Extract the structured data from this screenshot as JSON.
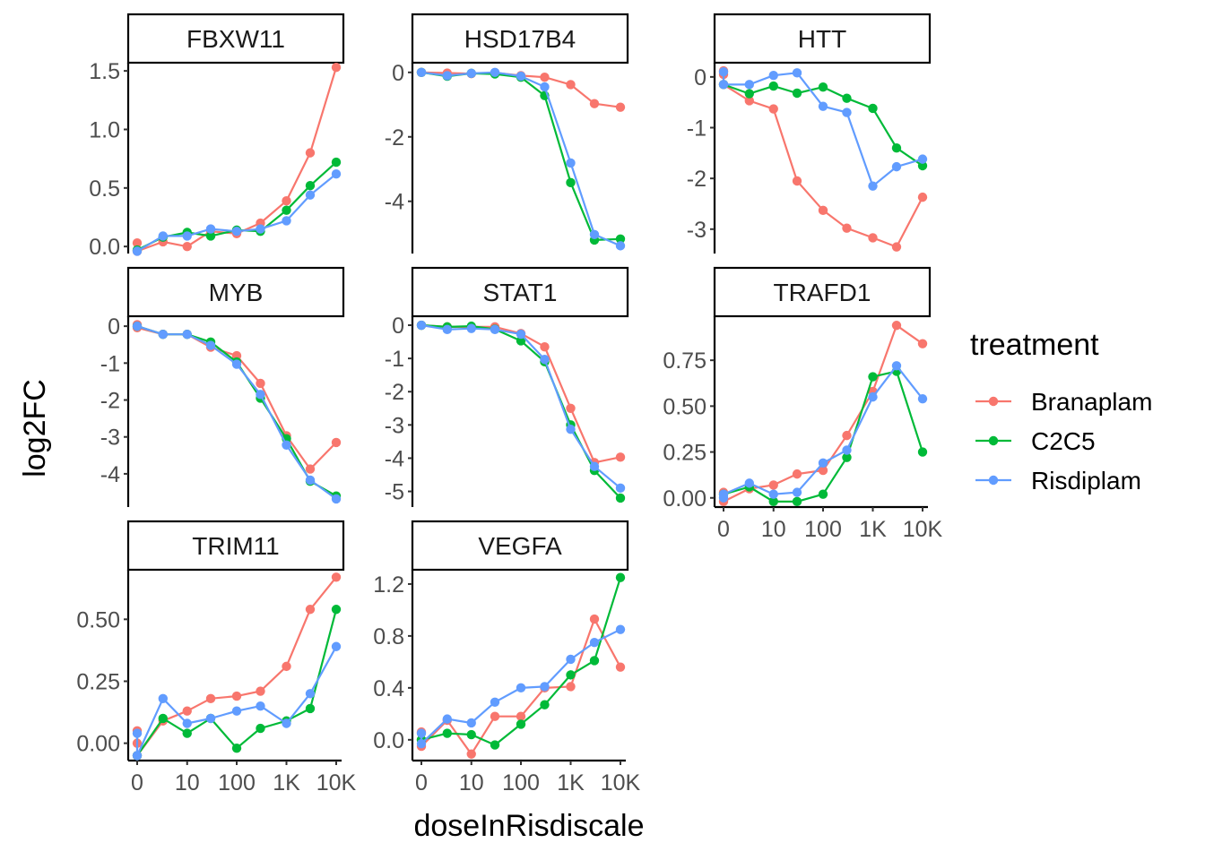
{
  "chart_data": {
    "type": "line",
    "facet": "gene",
    "xlabel": "doseInRisdiscale",
    "ylabel": "log2FC",
    "x_scale": "pseudo_log",
    "x_doses": [
      0,
      3,
      10,
      30,
      100,
      300,
      1000,
      3000,
      10000
    ],
    "x_ticks": [
      0,
      10,
      100,
      1000,
      10000
    ],
    "x_tick_labels": [
      "0",
      "10",
      "100",
      "1K",
      "10K"
    ],
    "legend": {
      "title": "treatment",
      "position": "right",
      "entries": [
        {
          "name": "Branaplam",
          "color": "#F8766D"
        },
        {
          "name": "C2C5",
          "color": "#00BA38"
        },
        {
          "name": "Risdiplam",
          "color": "#619CFF"
        }
      ]
    },
    "panels": [
      {
        "gene": "FBXW11",
        "ylim": [
          -0.06,
          1.57
        ],
        "y_ticks": [
          0.0,
          0.5,
          1.0,
          1.5
        ],
        "y_tick_labels": [
          "0.0",
          "0.5",
          "1.0",
          "1.5"
        ],
        "show_x_axis": false,
        "series": {
          "Branaplam": {
            "dose0": [
              0.03,
              -0.04
            ],
            "values": [
              0.04,
              0.0,
              0.13,
              0.11,
              0.2,
              0.39,
              0.8,
              1.53
            ]
          },
          "C2C5": {
            "dose0": [
              -0.03
            ],
            "values": [
              0.08,
              0.12,
              0.09,
              0.14,
              0.13,
              0.31,
              0.52,
              0.72
            ]
          },
          "Risdiplam": {
            "dose0": [
              -0.04
            ],
            "values": [
              0.09,
              0.09,
              0.15,
              0.13,
              0.15,
              0.22,
              0.44,
              0.62
            ]
          }
        }
      },
      {
        "gene": "HSD17B4",
        "ylim": [
          -5.62,
          0.3
        ],
        "y_ticks": [
          0,
          -2,
          -4
        ],
        "y_tick_labels": [
          "0",
          "-2",
          "-4"
        ],
        "show_x_axis": false,
        "series": {
          "Branaplam": {
            "dose0": [
              0.0
            ],
            "values": [
              -0.02,
              -0.04,
              -0.01,
              -0.1,
              -0.15,
              -0.38,
              -0.97,
              -1.08
            ]
          },
          "C2C5": {
            "dose0": [
              0.0
            ],
            "values": [
              -0.12,
              -0.03,
              -0.05,
              -0.15,
              -0.72,
              -3.42,
              -5.2,
              -5.17
            ]
          },
          "Risdiplam": {
            "dose0": [
              0.0
            ],
            "values": [
              -0.1,
              -0.03,
              0.0,
              -0.12,
              -0.45,
              -2.81,
              -5.03,
              -5.38
            ]
          }
        }
      },
      {
        "gene": "HTT",
        "ylim": [
          -3.48,
          0.28
        ],
        "y_ticks": [
          0,
          -1,
          -2,
          -3
        ],
        "y_tick_labels": [
          "0",
          "-1",
          "-2",
          "-3"
        ],
        "show_x_axis": false,
        "series": {
          "Branaplam": {
            "dose0": [
              0.12,
              0.05,
              -0.15
            ],
            "values": [
              -0.47,
              -0.63,
              -2.05,
              -2.63,
              -2.98,
              -3.17,
              -3.35,
              -2.37
            ]
          },
          "C2C5": {
            "dose0": [
              -0.15
            ],
            "values": [
              -0.33,
              -0.18,
              -0.32,
              -0.2,
              -0.42,
              -0.62,
              -1.4,
              -1.75
            ]
          },
          "Risdiplam": {
            "dose0": [
              0.1,
              -0.15
            ],
            "values": [
              -0.15,
              0.03,
              0.08,
              -0.58,
              -0.7,
              -2.15,
              -1.77,
              -1.62
            ]
          }
        }
      },
      {
        "gene": "MYB",
        "ylim": [
          -4.9,
          0.27
        ],
        "y_ticks": [
          0,
          -1,
          -2,
          -3,
          -4
        ],
        "y_tick_labels": [
          "0",
          "-1",
          "-2",
          "-3",
          "-4"
        ],
        "show_x_axis": false,
        "series": {
          "Branaplam": {
            "dose0": [
              0.04,
              -0.04
            ],
            "values": [
              -0.22,
              -0.22,
              -0.57,
              -0.8,
              -1.55,
              -2.97,
              -3.87,
              -3.15
            ]
          },
          "C2C5": {
            "dose0": [
              0.0
            ],
            "values": [
              -0.22,
              -0.22,
              -0.43,
              -0.97,
              -1.95,
              -3.05,
              -4.2,
              -4.6
            ]
          },
          "Risdiplam": {
            "dose0": [
              0.0
            ],
            "values": [
              -0.22,
              -0.22,
              -0.52,
              -1.03,
              -1.85,
              -3.22,
              -4.17,
              -4.68
            ]
          }
        }
      },
      {
        "gene": "STAT1",
        "ylim": [
          -5.47,
          0.27
        ],
        "y_ticks": [
          0,
          -1,
          -2,
          -3,
          -4,
          -5
        ],
        "y_tick_labels": [
          "0",
          "-1",
          "-2",
          "-3",
          "-4",
          "-5"
        ],
        "show_x_axis": false,
        "series": {
          "Branaplam": {
            "dose0": [
              0.0
            ],
            "values": [
              -0.05,
              -0.05,
              -0.05,
              -0.25,
              -0.65,
              -2.5,
              -4.13,
              -3.97
            ]
          },
          "C2C5": {
            "dose0": [
              0.0
            ],
            "values": [
              -0.05,
              -0.03,
              -0.12,
              -0.47,
              -1.1,
              -3.0,
              -4.37,
              -5.2
            ]
          },
          "Risdiplam": {
            "dose0": [
              0.0
            ],
            "values": [
              -0.13,
              -0.1,
              -0.13,
              -0.27,
              -1.03,
              -3.13,
              -4.25,
              -4.9
            ]
          }
        }
      },
      {
        "gene": "TRAFD1",
        "ylim": [
          -0.05,
          0.99
        ],
        "y_ticks": [
          0.0,
          0.25,
          0.5,
          0.75
        ],
        "y_tick_labels": [
          "0.00",
          "0.25",
          "0.50",
          "0.75"
        ],
        "show_x_axis": true,
        "series": {
          "Branaplam": {
            "dose0": [
              0.03,
              -0.02
            ],
            "values": [
              0.05,
              0.07,
              0.13,
              0.15,
              0.34,
              0.58,
              0.94,
              0.84
            ]
          },
          "C2C5": {
            "dose0": [
              0.02
            ],
            "values": [
              0.06,
              -0.02,
              -0.02,
              0.02,
              0.22,
              0.66,
              0.69,
              0.25
            ]
          },
          "Risdiplam": {
            "dose0": [
              0.0,
              0.02
            ],
            "values": [
              0.08,
              0.02,
              0.03,
              0.19,
              0.26,
              0.55,
              0.72,
              0.54
            ]
          }
        }
      },
      {
        "gene": "TRIM11",
        "ylim": [
          -0.07,
          0.7
        ],
        "y_ticks": [
          0.0,
          0.25,
          0.5
        ],
        "y_tick_labels": [
          "0.00",
          "0.25",
          "0.50"
        ],
        "show_x_axis": true,
        "series": {
          "Branaplam": {
            "dose0": [
              0.05,
              0.0,
              -0.05
            ],
            "values": [
              0.09,
              0.13,
              0.18,
              0.19,
              0.21,
              0.31,
              0.54,
              0.67
            ]
          },
          "C2C5": {
            "dose0": [
              -0.05
            ],
            "values": [
              0.1,
              0.04,
              0.1,
              -0.02,
              0.06,
              0.09,
              0.14,
              0.54
            ]
          },
          "Risdiplam": {
            "dose0": [
              0.04,
              -0.05
            ],
            "values": [
              0.18,
              0.08,
              0.1,
              0.13,
              0.15,
              0.08,
              0.2,
              0.39
            ]
          }
        }
      },
      {
        "gene": "VEGFA",
        "ylim": [
          -0.16,
          1.31
        ],
        "y_ticks": [
          0.0,
          0.4,
          0.8,
          1.2
        ],
        "y_tick_labels": [
          "0.0",
          "0.4",
          "0.8",
          "1.2"
        ],
        "show_x_axis": true,
        "series": {
          "Branaplam": {
            "dose0": [
              0.06,
              0.0,
              -0.05
            ],
            "values": [
              0.15,
              -0.11,
              0.18,
              0.18,
              0.4,
              0.41,
              0.93,
              0.56
            ]
          },
          "C2C5": {
            "dose0": [
              0.0
            ],
            "values": [
              0.05,
              0.04,
              -0.04,
              0.12,
              0.27,
              0.5,
              0.61,
              1.25
            ]
          },
          "Risdiplam": {
            "dose0": [
              0.05,
              -0.03
            ],
            "values": [
              0.16,
              0.13,
              0.29,
              0.4,
              0.41,
              0.62,
              0.75,
              0.85
            ]
          }
        }
      }
    ]
  }
}
